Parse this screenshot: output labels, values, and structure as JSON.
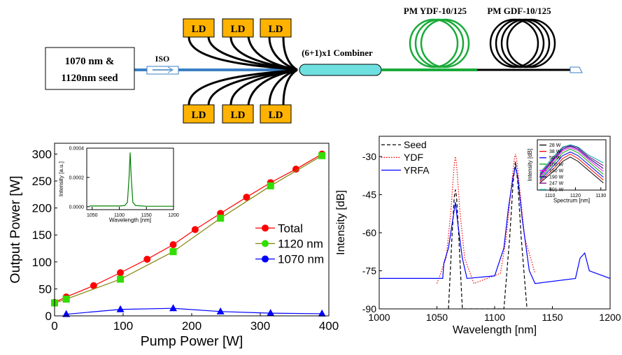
{
  "diagram": {
    "seed": [
      "1070 nm &",
      "1120nm seed"
    ],
    "iso": "ISO",
    "lds": [
      "LD",
      "LD",
      "LD",
      "LD",
      "LD",
      "LD"
    ],
    "combiner": "(6+1)x1 Combiner",
    "ydf": "PM YDF-10/125",
    "gdf": "PM GDF-10/125"
  },
  "chart_data": [
    {
      "type": "line",
      "xlabel": "Pump Power [W]",
      "ylabel": "Output Power [W]",
      "xlim": [
        0,
        400
      ],
      "xticks": [
        0,
        100,
        200,
        300,
        400
      ],
      "ylim": [
        0,
        320
      ],
      "yticks": [
        0,
        50,
        100,
        150,
        200,
        250,
        300
      ],
      "legend": "center right",
      "series": [
        {
          "name": "Total",
          "color": "#ff0000",
          "marker": "circle",
          "x": [
            0,
            17,
            57,
            96,
            135,
            173,
            205,
            242,
            280,
            315,
            352,
            390
          ],
          "values": [
            25,
            35,
            56,
            80,
            105,
            132,
            160,
            190,
            220,
            247,
            272,
            300
          ]
        },
        {
          "name": "1120 nm",
          "color": "#33dd00",
          "line_color": "#808000",
          "marker": "square",
          "x": [
            0,
            17,
            96,
            173,
            242,
            315,
            390
          ],
          "values": [
            24,
            31,
            68,
            119,
            181,
            241,
            297
          ]
        },
        {
          "name": "1070 nm",
          "color": "#0000ff",
          "marker": "triangle",
          "x": [
            17,
            96,
            173,
            242,
            315,
            390
          ],
          "values": [
            3,
            12,
            14,
            8,
            5,
            4
          ]
        }
      ],
      "inset": {
        "type": "line",
        "xlabel": "Wavelength [nm]",
        "ylabel": "Intensity [a.u.]",
        "xlim": [
          1040,
          1200
        ],
        "xticks": [
          1050,
          1100,
          1150,
          1200
        ],
        "ylim": [
          -2e-05,
          0.0004
        ],
        "yticks": [
          {
            "value": 0,
            "label": "0.0000"
          },
          {
            "value": 0.0002,
            "label": "0.0002"
          },
          {
            "value": 0.0004,
            "label": "0.0004"
          }
        ],
        "series": [
          {
            "name": null,
            "color": "#008000",
            "x": [
              1045,
              1100,
              1110,
              1115,
              1118,
              1120,
              1122,
              1125,
              1130,
              1150,
              1200
            ],
            "values": [
              5e-06,
              5e-06,
              8e-06,
              3e-05,
              0.0002,
              0.00037,
              0.0002,
              3e-05,
              8e-06,
              3e-06,
              3e-06
            ]
          }
        ]
      }
    },
    {
      "type": "line",
      "xlabel": "Wavelength [nm]",
      "ylabel": "Intensity [dB]",
      "xlim": [
        1000,
        1200
      ],
      "xticks": [
        1000,
        1050,
        1100,
        1150,
        1200
      ],
      "ylim": [
        -90,
        -22
      ],
      "yticks": [
        -90,
        -75,
        -60,
        -45,
        -30
      ],
      "legend": "upper left",
      "series": [
        {
          "name": "Seed",
          "color": "#000000",
          "dash": "dashed",
          "x": [
            1060,
            1063,
            1065,
            1066,
            1067,
            1069,
            1072,
            1108,
            1113,
            1116,
            1118,
            1120,
            1123,
            1128
          ],
          "values": [
            -90,
            -62,
            -46,
            -43,
            -46,
            -62,
            -90,
            -90,
            -62,
            -40,
            -32,
            -40,
            -62,
            -90
          ]
        },
        {
          "name": "YDF",
          "color": "#ff0000",
          "dash": "dotted",
          "x": [
            1050,
            1058,
            1062,
            1065,
            1066,
            1067,
            1070,
            1074,
            1082,
            1105,
            1110,
            1114,
            1117,
            1118,
            1119,
            1122,
            1126,
            1135
          ],
          "values": [
            -80,
            -70,
            -52,
            -33,
            -30,
            -33,
            -52,
            -70,
            -80,
            -76,
            -62,
            -44,
            -31,
            -29,
            -31,
            -44,
            -62,
            -76
          ]
        },
        {
          "name": "YRFA",
          "color": "#0000ff",
          "x": [
            1000,
            1055,
            1056,
            1060,
            1064,
            1066,
            1068,
            1072,
            1075,
            1076,
            1100,
            1108,
            1112,
            1116,
            1118,
            1120,
            1124,
            1130,
            1135,
            1170,
            1174,
            1178,
            1182,
            1200
          ],
          "values": [
            -78,
            -78,
            -72,
            -66,
            -54,
            -48,
            -56,
            -70,
            -76,
            -78,
            -77,
            -66,
            -50,
            -38,
            -34,
            -38,
            -55,
            -75,
            -80,
            -78,
            -70,
            -68,
            -75,
            -78
          ]
        }
      ],
      "inset": {
        "type": "line",
        "xlabel": "Spectrum [nm]",
        "ylabel": "Intensity [dB]",
        "xlim": [
          1105,
          1132
        ],
        "xticks": [
          1110,
          1120,
          1130
        ],
        "ylim": [
          -90,
          -20
        ],
        "yticks": [],
        "legend": "upper left",
        "series": [
          {
            "name": "28 W",
            "color": "#000000",
            "x": [
              1106,
              1112,
              1115,
              1118,
              1121,
              1125,
              1131
            ],
            "values": [
              -80,
              -62,
              -50,
              -44,
              -50,
              -62,
              -80
            ]
          },
          {
            "name": "38 W",
            "color": "#ff0000",
            "x": [
              1106,
              1112,
              1115,
              1118,
              1121,
              1125,
              1131
            ],
            "values": [
              -78,
              -58,
              -46,
              -40,
              -46,
              -58,
              -76
            ]
          },
          {
            "name": "50 W",
            "color": "#0000ff",
            "x": [
              1106,
              1112,
              1115,
              1118,
              1121,
              1125,
              1131
            ],
            "values": [
              -76,
              -54,
              -42,
              -37,
              -42,
              -54,
              -72
            ]
          },
          {
            "name": "100 W",
            "color": "#00aa00",
            "x": [
              1106,
              1112,
              1115,
              1118,
              1121,
              1125,
              1131
            ],
            "values": [
              -74,
              -50,
              -38,
              -33,
              -38,
              -50,
              -68
            ]
          },
          {
            "name": "150 W",
            "color": "#ff00ff",
            "x": [
              1106,
              1112,
              1115,
              1118,
              1121,
              1125,
              1131
            ],
            "values": [
              -72,
              -47,
              -35,
              -31,
              -35,
              -47,
              -64
            ]
          },
          {
            "name": "190 W",
            "color": "#000080",
            "x": [
              1106,
              1112,
              1115,
              1118,
              1121,
              1125,
              1131
            ],
            "values": [
              -70,
              -45,
              -33,
              -29,
              -33,
              -45,
              -60
            ]
          },
          {
            "name": "247 W",
            "color": "#800080",
            "x": [
              1106,
              1112,
              1115,
              1118,
              1121,
              1125,
              1131
            ],
            "values": [
              -68,
              -43,
              -31,
              -28,
              -31,
              -43,
              -56
            ]
          },
          {
            "name": "301 W",
            "color": "#00aaaa",
            "x": [
              1106,
              1112,
              1115,
              1118,
              1121,
              1125,
              1131
            ],
            "values": [
              -66,
              -41,
              -30,
              -27,
              -30,
              -41,
              -52
            ]
          }
        ]
      }
    }
  ]
}
